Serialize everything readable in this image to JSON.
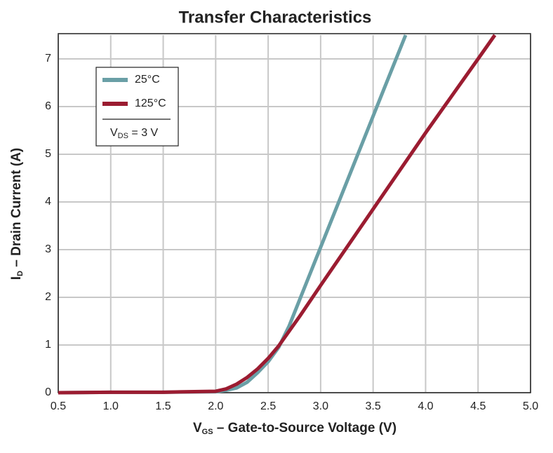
{
  "chart_data": {
    "type": "line",
    "title": "Transfer Characteristics",
    "x_label": {
      "main": "V",
      "sub": "GS",
      "rest": " – Gate-to-Source Voltage (V)"
    },
    "y_label": {
      "main": "I",
      "sub": "D",
      "rest": " – Drain Current (A)"
    },
    "annotation": {
      "main": "V",
      "sub": "DS",
      "rest": " = 3 V"
    },
    "xlim": [
      0.5,
      5.0
    ],
    "xticks": [
      0.5,
      {
        "value": 1,
        "label": "1.0"
      },
      1.5,
      {
        "value": 2,
        "label": "2.0"
      },
      2.5,
      {
        "value": 3,
        "label": "3.0"
      },
      3.5,
      {
        "value": 4,
        "label": "4.0"
      },
      4.5,
      {
        "value": 5,
        "label": "5.0"
      }
    ],
    "ylim": [
      0,
      7.5
    ],
    "yticks": [
      0,
      1,
      2,
      3,
      4,
      5,
      6,
      7
    ],
    "grid": true,
    "legend": "upper left",
    "series": [
      {
        "name": "25°C",
        "color": "#6a9fa6",
        "x": [
          0.5,
          1.0,
          1.5,
          2.0,
          2.1,
          2.2,
          2.3,
          2.4,
          2.5,
          2.6,
          2.7,
          2.8,
          2.9,
          3.0,
          3.2,
          3.4,
          3.6,
          3.81
        ],
        "values": [
          0,
          0.01,
          0.01,
          0.02,
          0.05,
          0.1,
          0.22,
          0.42,
          0.65,
          0.95,
          1.4,
          1.95,
          2.5,
          3.05,
          4.15,
          5.25,
          6.35,
          7.5
        ]
      },
      {
        "name": "125°C",
        "color": "#9b1c31",
        "x": [
          0.5,
          1.0,
          1.5,
          2.0,
          2.1,
          2.2,
          2.3,
          2.4,
          2.5,
          2.6,
          2.8,
          3.0,
          3.5,
          4.0,
          4.5,
          4.66
        ],
        "values": [
          0,
          0.01,
          0.01,
          0.03,
          0.08,
          0.18,
          0.32,
          0.5,
          0.72,
          0.98,
          1.6,
          2.25,
          3.85,
          5.45,
          7.0,
          7.5
        ]
      }
    ]
  }
}
